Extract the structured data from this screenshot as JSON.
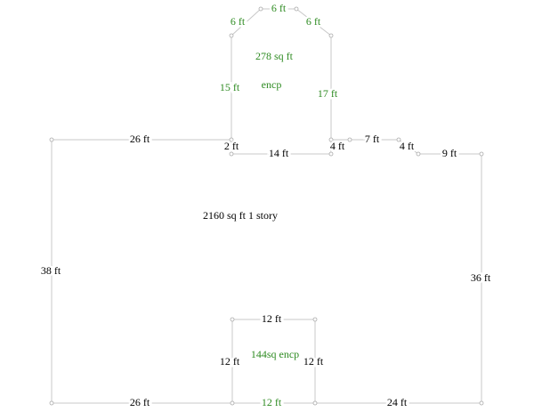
{
  "main": {
    "area": "2160 sq ft 1 story",
    "dims": [
      "26 ft",
      "2 ft",
      "14 ft",
      "4 ft",
      "7 ft",
      "4 ft",
      "9 ft",
      "36 ft",
      "24 ft",
      "26 ft",
      "38 ft"
    ]
  },
  "upper_enclosure": {
    "area": "278 sq ft",
    "label": "encp",
    "dims": [
      "6 ft",
      "6 ft",
      "6 ft",
      "15 ft",
      "17 ft"
    ]
  },
  "lower_enclosure": {
    "label": "144sq encp",
    "dims": [
      "12 ft",
      "12 ft",
      "12 ft",
      "12 ft"
    ]
  }
}
